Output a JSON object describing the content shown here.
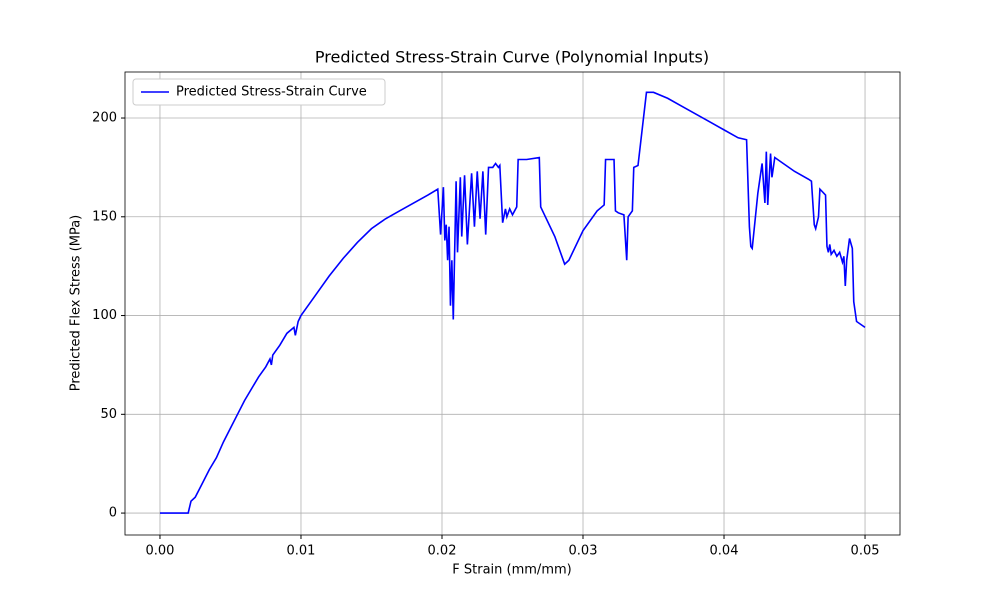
{
  "chart_data": {
    "type": "line",
    "title": "Predicted Stress-Strain Curve (Polynomial Inputs)",
    "xlabel": "F Strain (mm/mm)",
    "ylabel": "Predicted Flex Stress (MPa)",
    "x": [
      0,
      0.002,
      0.0022,
      0.0025,
      0.003,
      0.0035,
      0.004,
      0.0045,
      0.005,
      0.0055,
      0.006,
      0.0065,
      0.007,
      0.0075,
      0.0078,
      0.0079,
      0.008,
      0.0085,
      0.009,
      0.0095,
      0.0096,
      0.0098,
      0.01,
      0.011,
      0.012,
      0.013,
      0.014,
      0.015,
      0.016,
      0.017,
      0.018,
      0.019,
      0.0197,
      0.0199,
      0.0201,
      0.0202,
      0.0203,
      0.0204,
      0.0205,
      0.0206,
      0.0207,
      0.0208,
      0.021,
      0.0211,
      0.0213,
      0.0214,
      0.0216,
      0.0218,
      0.0221,
      0.0223,
      0.0225,
      0.0227,
      0.0229,
      0.0231,
      0.0233,
      0.0236,
      0.0238,
      0.024,
      0.0241,
      0.0243,
      0.0245,
      0.0246,
      0.0248,
      0.025,
      0.0253,
      0.0254,
      0.026,
      0.0269,
      0.027,
      0.028,
      0.0287,
      0.029,
      0.03,
      0.031,
      0.0315,
      0.0316,
      0.0322,
      0.0323,
      0.0325,
      0.0329,
      0.0331,
      0.0332,
      0.0335,
      0.0336,
      0.0339,
      0.0345,
      0.035,
      0.036,
      0.037,
      0.038,
      0.039,
      0.04,
      0.041,
      0.0416,
      0.0418,
      0.0419,
      0.042,
      0.0424,
      0.0427,
      0.0429,
      0.043,
      0.0431,
      0.0433,
      0.0434,
      0.0436,
      0.044,
      0.045,
      0.046,
      0.0462,
      0.0464,
      0.0465,
      0.0467,
      0.0468,
      0.0472,
      0.0473,
      0.0474,
      0.0475,
      0.0476,
      0.0478,
      0.048,
      0.0482,
      0.0484,
      0.0485,
      0.0486,
      0.0487,
      0.0489,
      0.0491,
      0.0492,
      0.0494,
      0.05
    ],
    "series": [
      {
        "name": "Predicted Stress-Strain Curve",
        "color": "#0000ff",
        "values": [
          0,
          0,
          6,
          8,
          15,
          22,
          28,
          36,
          43,
          50,
          57,
          63,
          69,
          74,
          78,
          75,
          80,
          85,
          91,
          94,
          90,
          97,
          100,
          110,
          120,
          129,
          137,
          144,
          149,
          153,
          157,
          161,
          164,
          141,
          165,
          138,
          146,
          128,
          145,
          105,
          128,
          98,
          168,
          132,
          170,
          140,
          171,
          136,
          172,
          145,
          173,
          149,
          173,
          141,
          175,
          175,
          177,
          175,
          176,
          147,
          154,
          150,
          154,
          151,
          155,
          179,
          179,
          180,
          155,
          140,
          126,
          128,
          143,
          153,
          156,
          179,
          179,
          153,
          152,
          151,
          128,
          150,
          153,
          175,
          176,
          213,
          213,
          210,
          206,
          202,
          198,
          194,
          190,
          189,
          145,
          135,
          134,
          162,
          177,
          157,
          183,
          156,
          182,
          170,
          180,
          178,
          173,
          169,
          168,
          146,
          144,
          150,
          164,
          161,
          135,
          132,
          136,
          131,
          133,
          130,
          132,
          127,
          130,
          115,
          128,
          139,
          134,
          107,
          97,
          94
        ]
      }
    ],
    "xlim": [
      -0.00248,
      0.05248
    ],
    "ylim": [
      -11.1,
      223.3
    ],
    "xticks": [
      {
        "value": 0,
        "label": "0.00"
      },
      0.01,
      0.02,
      0.03,
      0.04,
      0.05
    ],
    "yticks": [
      0,
      50,
      100,
      150,
      200
    ],
    "grid": true,
    "legend": "upper-left"
  }
}
